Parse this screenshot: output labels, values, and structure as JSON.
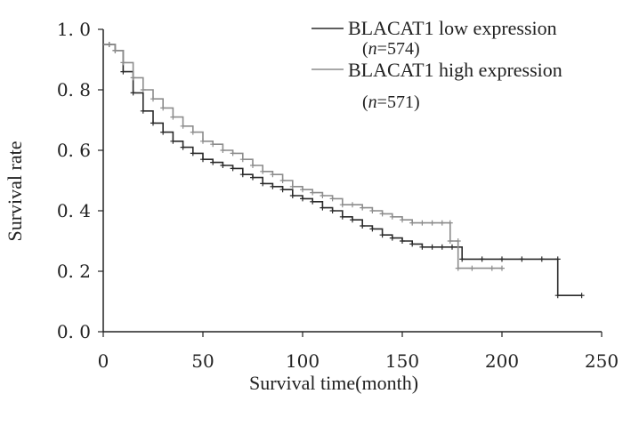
{
  "chart_data": {
    "type": "line",
    "title": "",
    "xlabel": "Survival time(month)",
    "ylabel": "Survival rate",
    "xlim": [
      0,
      250
    ],
    "ylim": [
      0,
      1.0
    ],
    "x_ticks": [
      0,
      50,
      100,
      150,
      200,
      250
    ],
    "y_ticks": [
      0.0,
      0.2,
      0.4,
      0.6,
      0.8,
      1.0
    ],
    "x_tick_labels": [
      "0",
      "50",
      "100",
      "150",
      "200",
      "250"
    ],
    "y_tick_labels": [
      "0. 0",
      "0. 2",
      "0. 4",
      "0. 6",
      "0. 8",
      "1. 0"
    ],
    "grid": false,
    "legend_position": "top-right",
    "series": [
      {
        "name": "BLACAT1 low expression",
        "n_label": "n",
        "n_value": "=574)",
        "color": "#2a2a2a",
        "x": [
          0,
          3,
          6,
          10,
          15,
          20,
          25,
          30,
          35,
          40,
          45,
          50,
          55,
          60,
          65,
          70,
          75,
          80,
          85,
          90,
          95,
          100,
          105,
          110,
          115,
          120,
          125,
          130,
          135,
          140,
          145,
          150,
          155,
          160,
          165,
          170,
          175,
          178,
          180,
          190,
          200,
          210,
          220,
          228,
          228,
          240
        ],
        "y": [
          0.95,
          0.95,
          0.93,
          0.86,
          0.79,
          0.73,
          0.69,
          0.66,
          0.63,
          0.61,
          0.59,
          0.57,
          0.56,
          0.55,
          0.54,
          0.52,
          0.51,
          0.49,
          0.48,
          0.47,
          0.45,
          0.44,
          0.43,
          0.41,
          0.4,
          0.38,
          0.37,
          0.35,
          0.34,
          0.32,
          0.31,
          0.3,
          0.29,
          0.28,
          0.28,
          0.28,
          0.28,
          0.28,
          0.24,
          0.24,
          0.24,
          0.24,
          0.24,
          0.24,
          0.12,
          0.12
        ]
      },
      {
        "name": "BLACAT1 high expression",
        "n_label": "n",
        "n_value": "=571)",
        "color": "#8c8c8c",
        "x": [
          0,
          3,
          6,
          10,
          15,
          20,
          25,
          30,
          35,
          40,
          45,
          50,
          55,
          60,
          65,
          70,
          75,
          80,
          85,
          90,
          95,
          100,
          105,
          110,
          115,
          120,
          125,
          130,
          135,
          140,
          145,
          150,
          155,
          160,
          165,
          170,
          174,
          174,
          178,
          178,
          185,
          195,
          200
        ],
        "y": [
          0.95,
          0.95,
          0.93,
          0.89,
          0.84,
          0.8,
          0.77,
          0.74,
          0.71,
          0.68,
          0.66,
          0.63,
          0.62,
          0.6,
          0.59,
          0.57,
          0.55,
          0.53,
          0.52,
          0.5,
          0.48,
          0.47,
          0.46,
          0.45,
          0.44,
          0.42,
          0.42,
          0.41,
          0.4,
          0.39,
          0.38,
          0.37,
          0.36,
          0.36,
          0.36,
          0.36,
          0.36,
          0.3,
          0.3,
          0.21,
          0.21,
          0.21,
          0.21
        ]
      }
    ]
  }
}
